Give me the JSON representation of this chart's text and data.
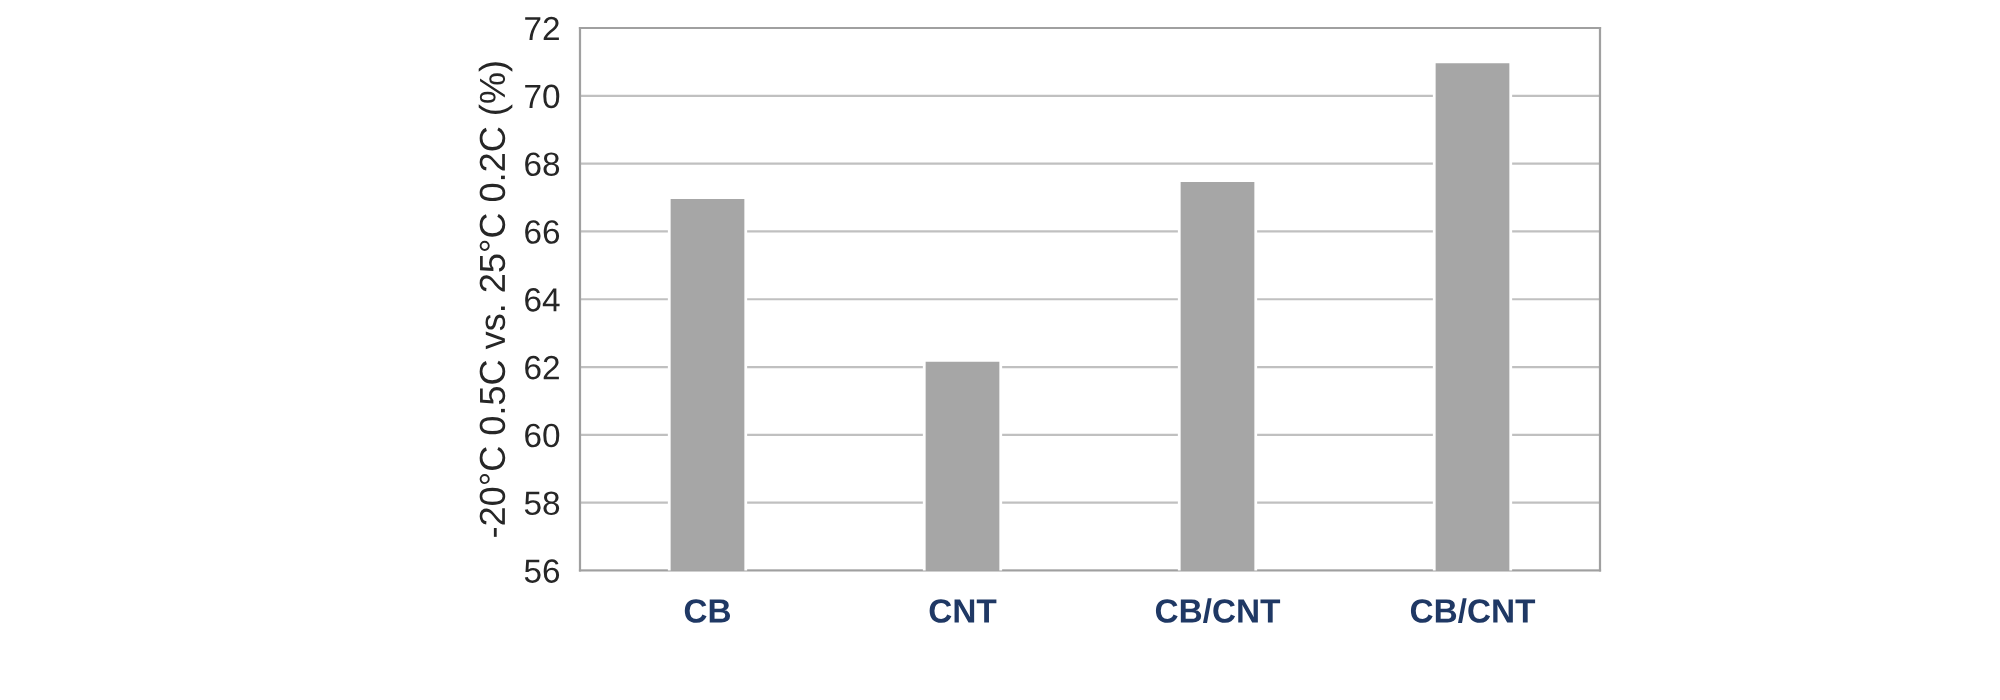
{
  "chart_data": {
    "type": "bar",
    "ylabel": "-20°C 0.5C vs. 25°C 0.2C (%)",
    "categories": [
      "CB",
      "CNT",
      "CB/CNT",
      "CB/CNT"
    ],
    "values": [
      67,
      62.2,
      67.5,
      71
    ],
    "color": "#a6a6a6",
    "ylim": [
      56,
      72
    ],
    "yticks": [
      56,
      58,
      60,
      62,
      64,
      66,
      68,
      70,
      72
    ],
    "grid": "y"
  }
}
